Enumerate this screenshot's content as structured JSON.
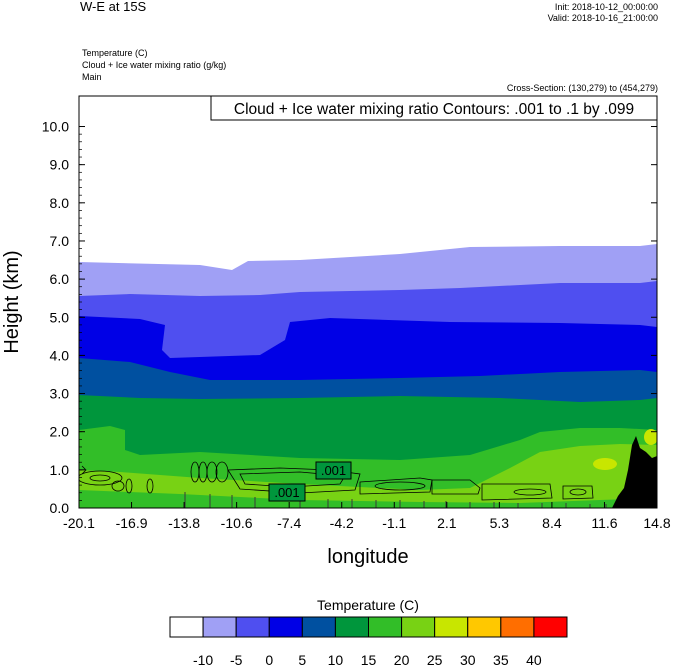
{
  "header": {
    "plot_title": "W-E at 15S",
    "init": "Init: 2018-10-12_00:00:00",
    "valid": "Valid: 2018-10-16_21:00:00",
    "field_lines": [
      "Temperature   (C)",
      "Cloud + Ice water mixing ratio   (g/kg)",
      "Main"
    ],
    "cross_section": "Cross-Section: (130,279) to (454,279)",
    "contour_info": "Cloud + Ice water mixing ratio Contours: .001 to .1 by .099"
  },
  "chart_data": {
    "type": "heatmap",
    "xlabel": "longitude",
    "ylabel": "Height (km)",
    "x_ticks": [
      "-20.1",
      "-16.9",
      "-13.8",
      "-10.6",
      "-7.4",
      "-4.2",
      "-1.1",
      "2.1",
      "5.3",
      "8.4",
      "11.6",
      "14.8"
    ],
    "y_ticks": [
      "0.0",
      "1.0",
      "2.0",
      "3.0",
      "4.0",
      "5.0",
      "6.0",
      "7.0",
      "8.0",
      "9.0",
      "10.0"
    ],
    "xlim": [
      -20.1,
      14.8
    ],
    "ylim": [
      0,
      10.8
    ],
    "contour_labels": [
      ".001",
      ".001"
    ],
    "colorbar": {
      "title": "Temperature  (C)",
      "levels": [
        "-10",
        "-5",
        "0",
        "5",
        "10",
        "15",
        "20",
        "25",
        "30",
        "35",
        "40"
      ],
      "colors": [
        "#ffffff",
        "#a0a0f5",
        "#4f4ff0",
        "#0000e6",
        "#0050a0",
        "#00963c",
        "#32be28",
        "#78d214",
        "#c8e600",
        "#ffc800",
        "#ff6e00",
        "#ff0000"
      ]
    }
  }
}
